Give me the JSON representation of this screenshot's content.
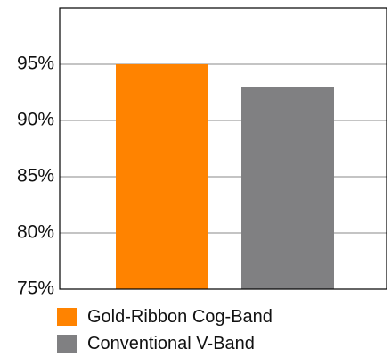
{
  "chart_data": {
    "type": "bar",
    "categories": [
      "Gold-Ribbon Cog-Band",
      "Conventional V-Band"
    ],
    "values": [
      95,
      93
    ],
    "colors": [
      "#ff8300",
      "#808082"
    ],
    "ylim": [
      75,
      100
    ],
    "yticks": [
      75,
      80,
      85,
      90,
      95
    ],
    "ytick_labels": [
      "75%",
      "80%",
      "85%",
      "90%",
      "95%"
    ],
    "grid": true,
    "legend": "bottom-left",
    "title": "",
    "xlabel": "",
    "ylabel": ""
  }
}
